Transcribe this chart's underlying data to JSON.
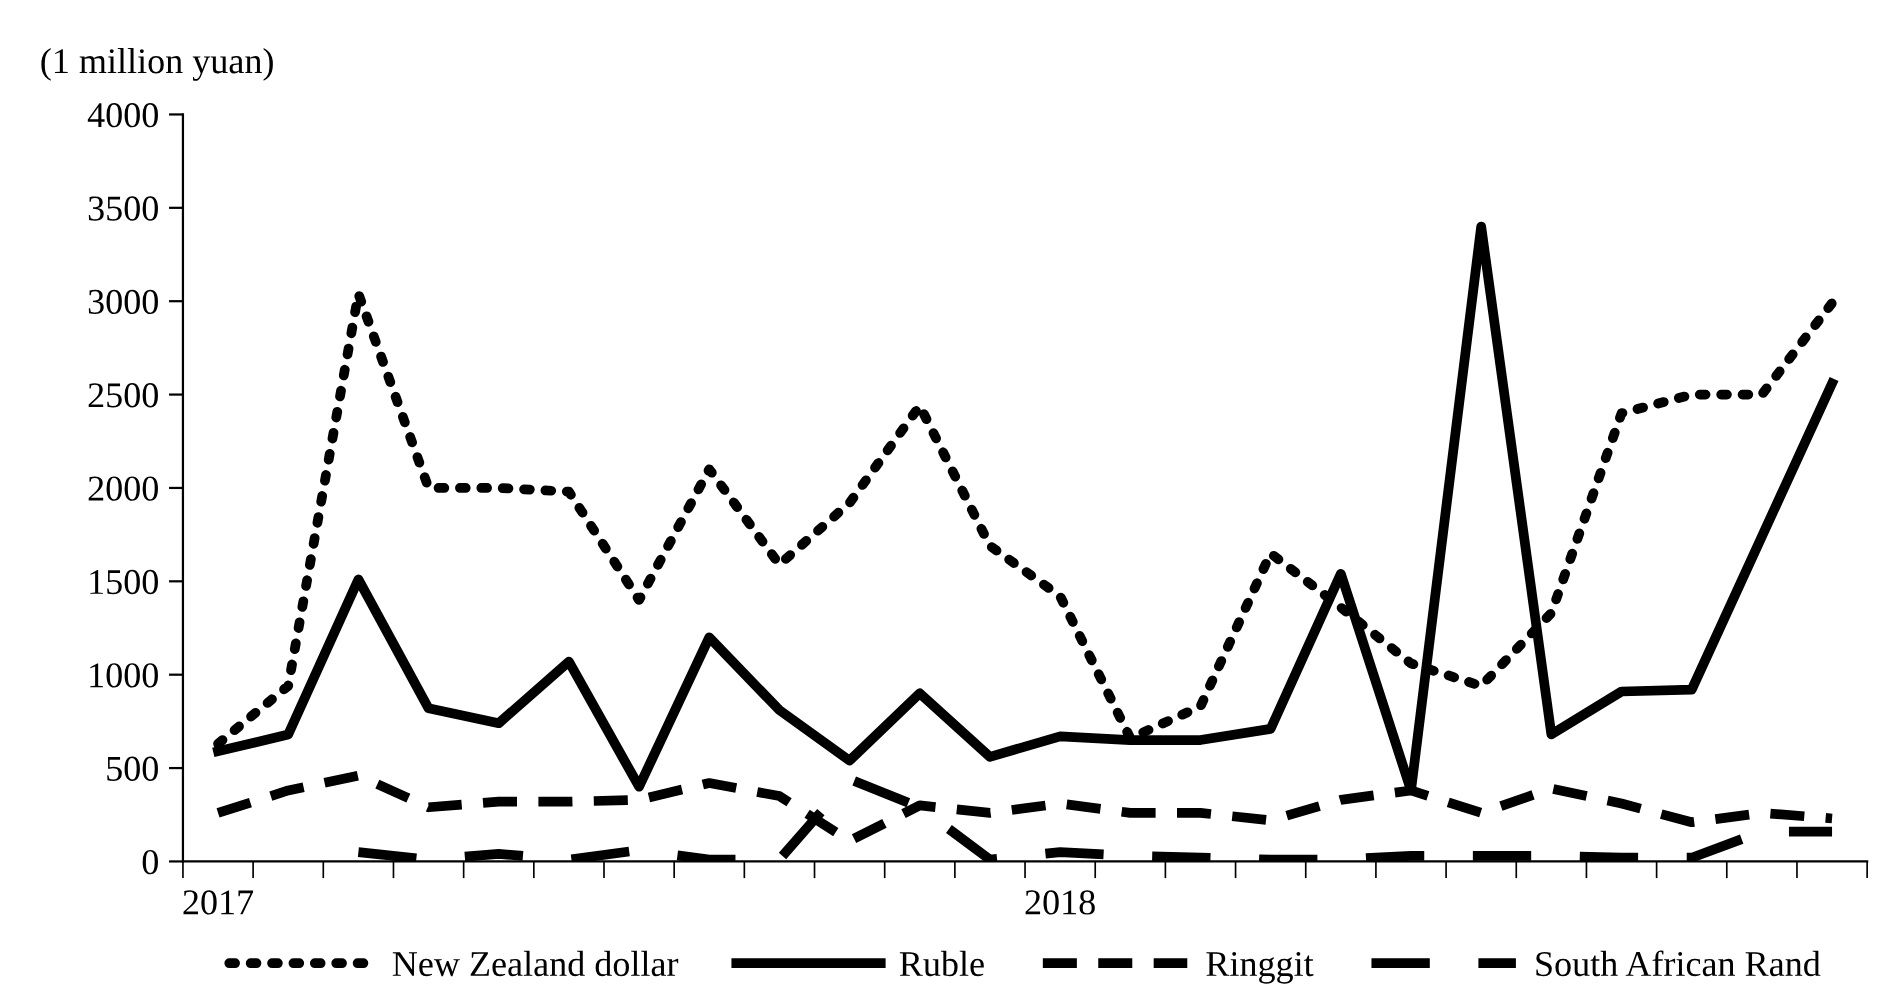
{
  "chart_data": {
    "type": "line",
    "ylabel": "(1 million yuan)",
    "categories": [
      "2017",
      null,
      null,
      null,
      null,
      null,
      null,
      null,
      null,
      null,
      null,
      null,
      "2018",
      null,
      null,
      null,
      null,
      null,
      null,
      null,
      null,
      null,
      null,
      null
    ],
    "ylim": [
      0,
      4000
    ],
    "yticks": [
      0,
      500,
      1000,
      1500,
      2000,
      2500,
      3000,
      3500,
      4000
    ],
    "grid": false,
    "legend": "bottom",
    "series": [
      {
        "name": "New Zealand dollar",
        "color": "#000000",
        "line_style": "dotted",
        "values": [
          630,
          940,
          3040,
          2000,
          2000,
          1980,
          1400,
          2100,
          1590,
          1920,
          2440,
          1690,
          1420,
          660,
          830,
          1650,
          1360,
          1060,
          940,
          1330,
          2400,
          2500,
          2500,
          2990
        ]
      },
      {
        "name": "Ruble",
        "color": "#000000",
        "line_style": "solid",
        "values": [
          590,
          680,
          1510,
          820,
          740,
          1070,
          400,
          1200,
          810,
          540,
          900,
          560,
          670,
          650,
          650,
          710,
          1540,
          380,
          3400,
          680,
          910,
          920,
          1740,
          2560
        ]
      },
      {
        "name": "Ringgit",
        "color": "#000000",
        "line_style": "dashed",
        "values": [
          260,
          380,
          460,
          290,
          320,
          320,
          330,
          420,
          350,
          110,
          300,
          260,
          310,
          260,
          260,
          220,
          330,
          380,
          260,
          390,
          310,
          210,
          260,
          230
        ]
      },
      {
        "name": "South African Rand",
        "color": "#000000",
        "line_style": "dashed",
        "values": [
          null,
          null,
          50,
          10,
          40,
          10,
          60,
          10,
          10,
          440,
          290,
          10,
          50,
          30,
          20,
          10,
          10,
          30,
          30,
          30,
          20,
          20,
          160,
          160
        ]
      }
    ]
  }
}
